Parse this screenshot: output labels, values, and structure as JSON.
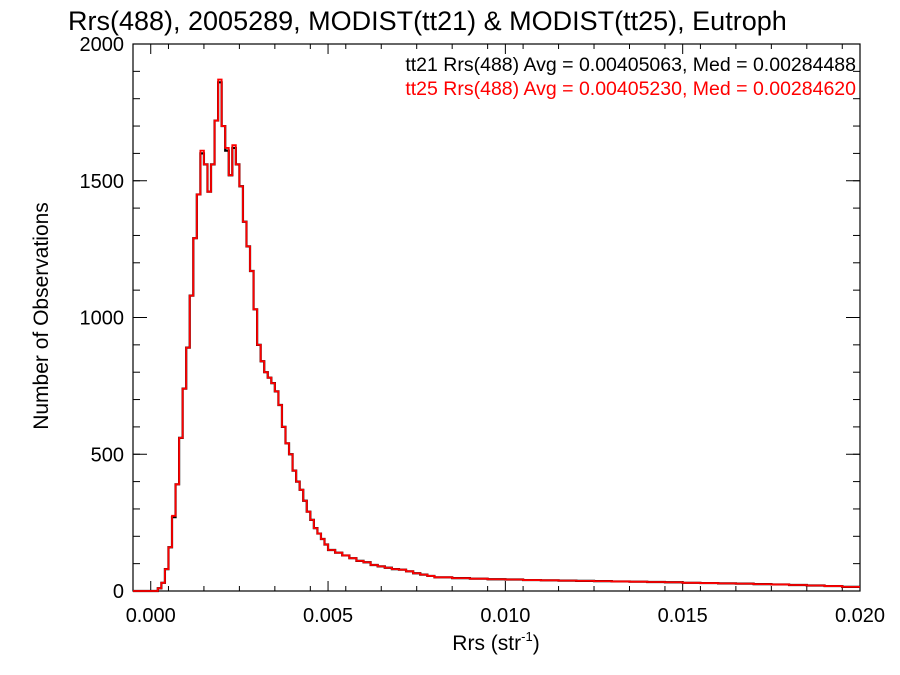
{
  "chart_data": {
    "type": "line",
    "title": "Rrs(488), 2005289, MODIST(tt21) & MODIST(tt25), Eutroph",
    "xlabel": "Rrs (str",
    "xlabel_sup": "-1",
    "xlabel_close": ")",
    "ylabel": "Number of Observations",
    "xlim": [
      -0.0005,
      0.02
    ],
    "ylim": [
      0,
      2000
    ],
    "xticks": [
      0.0,
      0.005,
      0.01,
      0.015,
      0.02
    ],
    "xtick_labels": [
      "0.000",
      "0.005",
      "0.010",
      "0.015",
      "0.020"
    ],
    "yticks": [
      0,
      500,
      1000,
      1500,
      2000
    ],
    "ytick_labels": [
      "0",
      "500",
      "1000",
      "1500",
      "2000"
    ],
    "step_style": "histogram",
    "bin_width": 0.0001,
    "legend_position": "top-right",
    "grid": false,
    "series": [
      {
        "name": "tt21 Rrs(488) Avg = 0.00405063, Med = 0.00284488",
        "color": "#000000",
        "x": [
          0.0,
          0.0001,
          0.0002,
          0.0003,
          0.0004,
          0.0005,
          0.0006,
          0.0007,
          0.0008,
          0.0009,
          0.001,
          0.0011,
          0.0012,
          0.0013,
          0.0014,
          0.0015,
          0.0016,
          0.0017,
          0.0018,
          0.0019,
          0.002,
          0.0021,
          0.0022,
          0.0023,
          0.0024,
          0.0025,
          0.0026,
          0.0027,
          0.0028,
          0.0029,
          0.003,
          0.0031,
          0.0032,
          0.0033,
          0.0034,
          0.0035,
          0.0036,
          0.0037,
          0.0038,
          0.0039,
          0.004,
          0.0041,
          0.0042,
          0.0043,
          0.0044,
          0.0045,
          0.0046,
          0.0047,
          0.0048,
          0.0049,
          0.005,
          0.0052,
          0.0054,
          0.0056,
          0.0058,
          0.006,
          0.0062,
          0.0064,
          0.0066,
          0.0068,
          0.007,
          0.0072,
          0.0074,
          0.0076,
          0.0078,
          0.008,
          0.0085,
          0.009,
          0.0095,
          0.01,
          0.0105,
          0.011,
          0.0115,
          0.012,
          0.0125,
          0.013,
          0.0135,
          0.014,
          0.0145,
          0.015,
          0.0155,
          0.016,
          0.0165,
          0.017,
          0.0175,
          0.018,
          0.0185,
          0.019,
          0.0195
        ],
        "y": [
          0,
          0,
          10,
          30,
          80,
          160,
          270,
          390,
          560,
          740,
          890,
          1080,
          1290,
          1450,
          1600,
          1560,
          1460,
          1560,
          1720,
          1860,
          1700,
          1610,
          1520,
          1620,
          1560,
          1480,
          1350,
          1260,
          1170,
          1030,
          900,
          840,
          800,
          780,
          760,
          730,
          680,
          600,
          540,
          500,
          440,
          400,
          370,
          330,
          290,
          260,
          230,
          210,
          190,
          170,
          150,
          140,
          130,
          120,
          110,
          105,
          95,
          90,
          85,
          80,
          78,
          72,
          65,
          60,
          55,
          50,
          47,
          45,
          43,
          42,
          40,
          39,
          38,
          37,
          36,
          35,
          34,
          33,
          32,
          30,
          29,
          28,
          27,
          25,
          24,
          22,
          20,
          18,
          15
        ]
      },
      {
        "name": "tt25 Rrs(488) Avg = 0.00405230, Med = 0.00284620",
        "color": "#ff0000",
        "x": [
          0.0,
          0.0001,
          0.0002,
          0.0003,
          0.0004,
          0.0005,
          0.0006,
          0.0007,
          0.0008,
          0.0009,
          0.001,
          0.0011,
          0.0012,
          0.0013,
          0.0014,
          0.0015,
          0.0016,
          0.0017,
          0.0018,
          0.0019,
          0.002,
          0.0021,
          0.0022,
          0.0023,
          0.0024,
          0.0025,
          0.0026,
          0.0027,
          0.0028,
          0.0029,
          0.003,
          0.0031,
          0.0032,
          0.0033,
          0.0034,
          0.0035,
          0.0036,
          0.0037,
          0.0038,
          0.0039,
          0.004,
          0.0041,
          0.0042,
          0.0043,
          0.0044,
          0.0045,
          0.0046,
          0.0047,
          0.0048,
          0.0049,
          0.005,
          0.0052,
          0.0054,
          0.0056,
          0.0058,
          0.006,
          0.0062,
          0.0064,
          0.0066,
          0.0068,
          0.007,
          0.0072,
          0.0074,
          0.0076,
          0.0078,
          0.008,
          0.0085,
          0.009,
          0.0095,
          0.01,
          0.0105,
          0.011,
          0.0115,
          0.012,
          0.0125,
          0.013,
          0.0135,
          0.014,
          0.0145,
          0.015,
          0.0155,
          0.016,
          0.0165,
          0.017,
          0.0175,
          0.018,
          0.0185,
          0.019,
          0.0195
        ],
        "y": [
          0,
          0,
          10,
          30,
          80,
          160,
          275,
          390,
          560,
          740,
          890,
          1080,
          1290,
          1450,
          1610,
          1560,
          1460,
          1560,
          1720,
          1870,
          1700,
          1620,
          1520,
          1630,
          1560,
          1480,
          1350,
          1260,
          1170,
          1030,
          900,
          840,
          800,
          780,
          760,
          730,
          680,
          600,
          540,
          500,
          440,
          400,
          370,
          330,
          290,
          260,
          230,
          210,
          190,
          170,
          150,
          140,
          130,
          120,
          110,
          105,
          95,
          90,
          85,
          80,
          78,
          72,
          65,
          60,
          55,
          50,
          47,
          45,
          43,
          42,
          40,
          39,
          38,
          37,
          36,
          35,
          34,
          33,
          32,
          30,
          29,
          28,
          27,
          25,
          24,
          22,
          20,
          18,
          15
        ]
      }
    ]
  }
}
